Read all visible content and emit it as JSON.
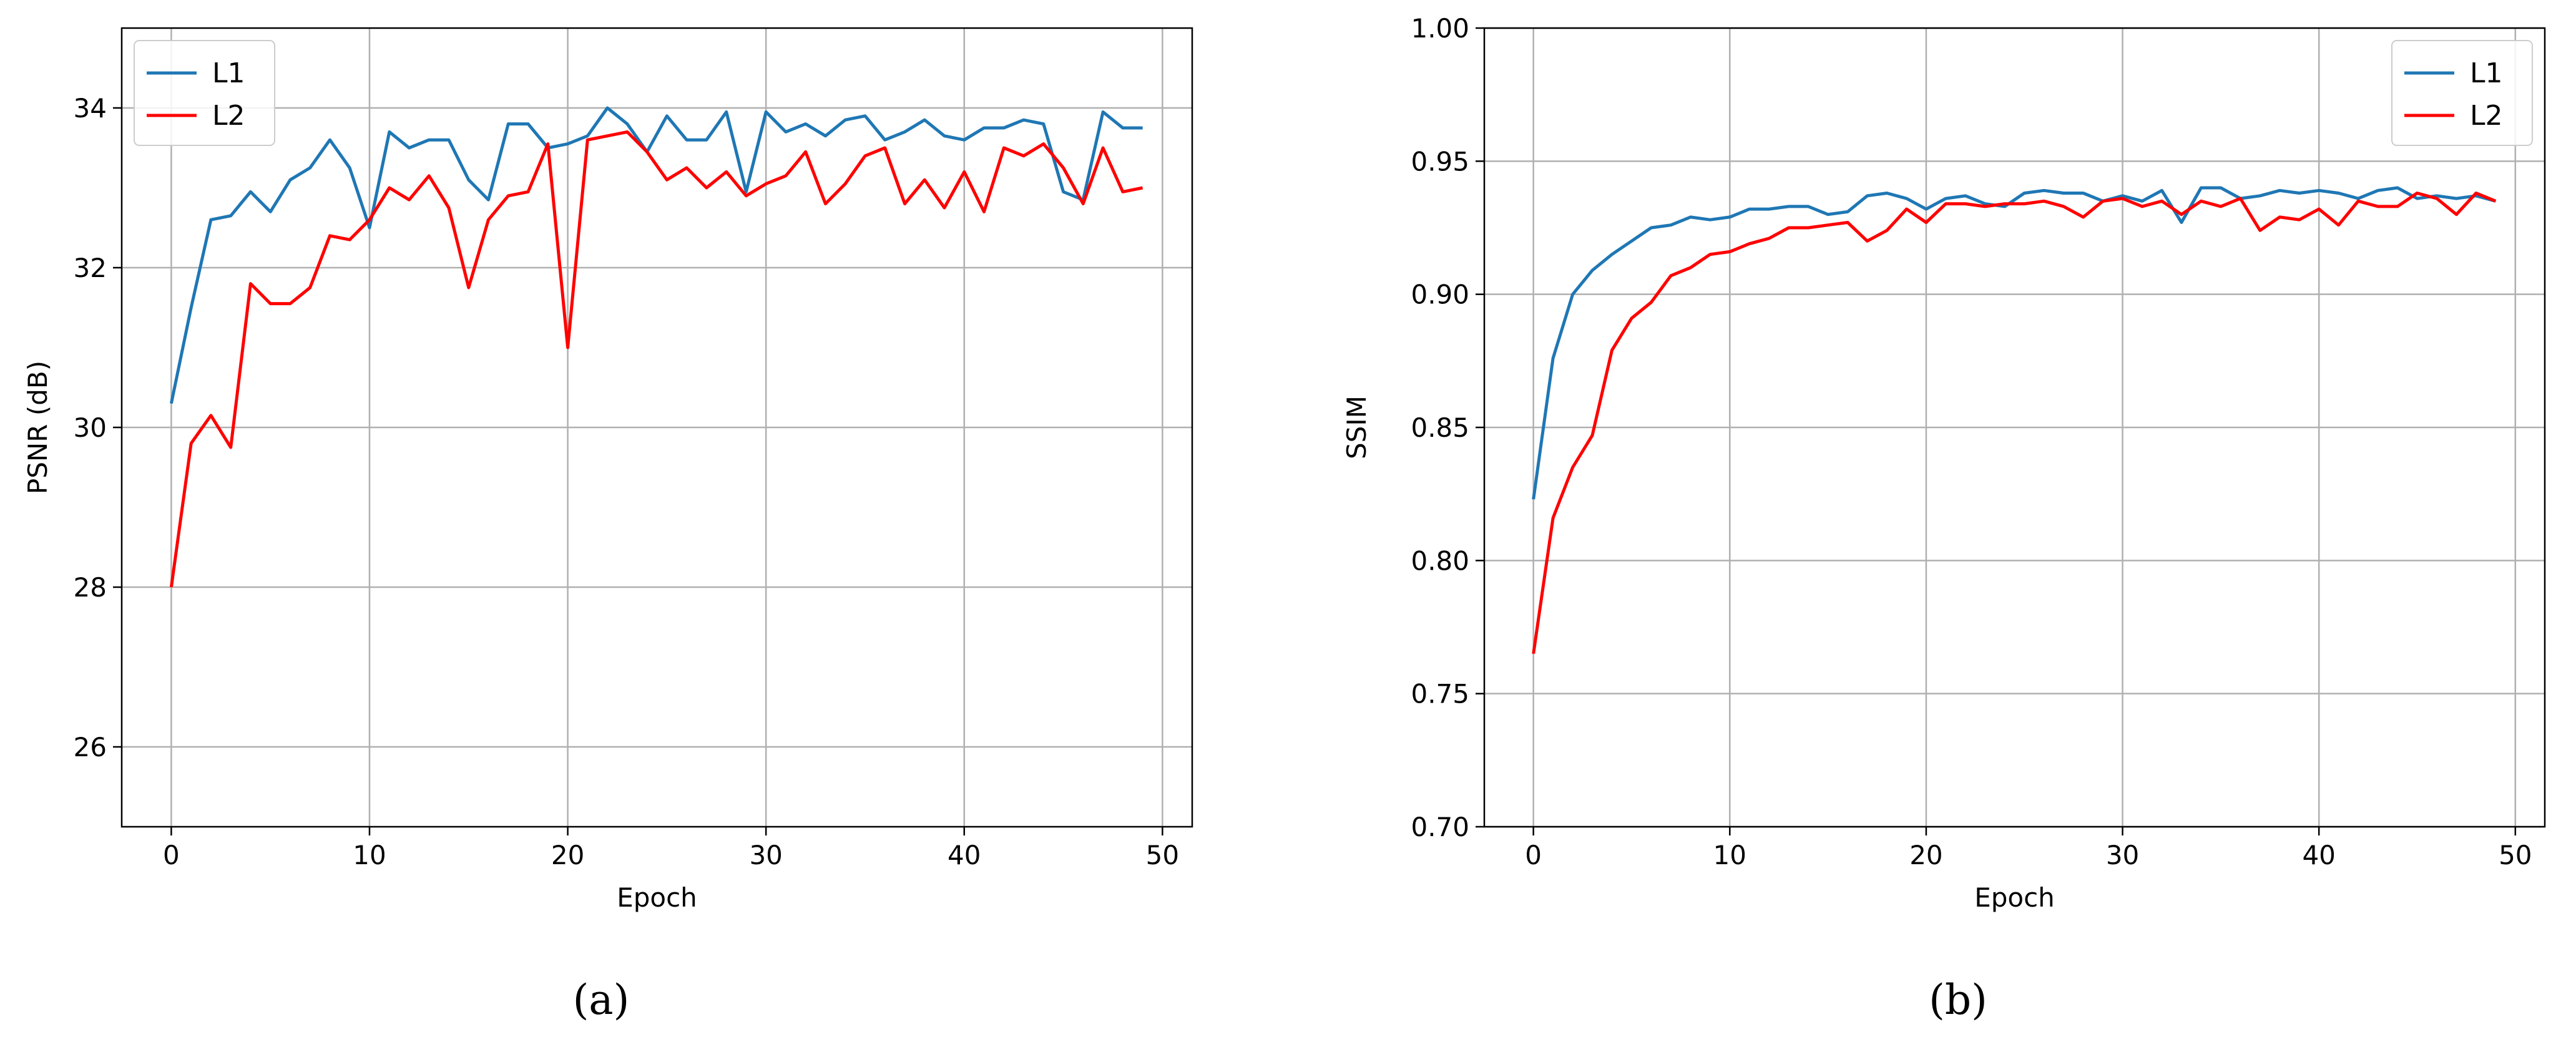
{
  "chart_data": [
    {
      "type": "line",
      "panel": "(a)",
      "xlabel": "Epoch",
      "ylabel": "PSNR (dB)",
      "xlim": [
        -2.5,
        51.5
      ],
      "ylim": [
        25,
        35
      ],
      "xticks": [
        0,
        10,
        20,
        30,
        40,
        50
      ],
      "yticks": [
        26,
        28,
        30,
        32,
        34
      ],
      "grid": true,
      "legend": "top-left",
      "x": [
        0,
        1,
        2,
        3,
        4,
        5,
        6,
        7,
        8,
        9,
        10,
        11,
        12,
        13,
        14,
        15,
        16,
        17,
        18,
        19,
        20,
        21,
        22,
        23,
        24,
        25,
        26,
        27,
        28,
        29,
        30,
        31,
        32,
        33,
        34,
        35,
        36,
        37,
        38,
        39,
        40,
        41,
        42,
        43,
        44,
        45,
        46,
        47,
        48,
        49
      ],
      "series": [
        {
          "name": "L1",
          "color": "#1f77b4",
          "values": [
            30.3,
            31.5,
            32.6,
            32.65,
            32.95,
            32.7,
            33.1,
            33.25,
            33.6,
            33.25,
            32.5,
            33.7,
            33.5,
            33.6,
            33.6,
            33.1,
            32.85,
            33.8,
            33.8,
            33.5,
            33.55,
            33.65,
            34.0,
            33.8,
            33.45,
            33.9,
            33.6,
            33.6,
            33.95,
            32.95,
            33.95,
            33.7,
            33.8,
            33.65,
            33.85,
            33.9,
            33.6,
            33.7,
            33.85,
            33.65,
            33.6,
            33.75,
            33.75,
            33.85,
            33.8,
            32.95,
            32.85,
            33.95,
            33.75,
            33.75
          ]
        },
        {
          "name": "L2",
          "color": "#ff0000",
          "values": [
            28.0,
            29.8,
            30.15,
            29.75,
            31.8,
            31.55,
            31.55,
            31.75,
            32.4,
            32.35,
            32.6,
            33.0,
            32.85,
            33.15,
            32.75,
            31.75,
            32.6,
            32.9,
            32.95,
            33.55,
            31.0,
            33.6,
            33.65,
            33.7,
            33.45,
            33.1,
            33.25,
            33.0,
            33.2,
            32.9,
            33.05,
            33.15,
            33.45,
            32.8,
            33.05,
            33.4,
            33.5,
            32.8,
            33.1,
            32.75,
            33.2,
            32.7,
            33.5,
            33.4,
            33.55,
            33.25,
            32.8,
            33.5,
            32.95,
            33.0
          ]
        }
      ]
    },
    {
      "type": "line",
      "panel": "(b)",
      "xlabel": "Epoch",
      "ylabel": "SSIM",
      "xlim": [
        -2.5,
        51.5
      ],
      "ylim": [
        0.7,
        1.0
      ],
      "xticks": [
        0,
        10,
        20,
        30,
        40,
        50
      ],
      "yticks": [
        0.7,
        0.75,
        0.8,
        0.85,
        0.9,
        0.95,
        1.0
      ],
      "grid": true,
      "legend": "top-right",
      "x": [
        0,
        1,
        2,
        3,
        4,
        5,
        6,
        7,
        8,
        9,
        10,
        11,
        12,
        13,
        14,
        15,
        16,
        17,
        18,
        19,
        20,
        21,
        22,
        23,
        24,
        25,
        26,
        27,
        28,
        29,
        30,
        31,
        32,
        33,
        34,
        35,
        36,
        37,
        38,
        39,
        40,
        41,
        42,
        43,
        44,
        45,
        46,
        47,
        48,
        49
      ],
      "series": [
        {
          "name": "L1",
          "color": "#1f77b4",
          "values": [
            0.823,
            0.876,
            0.9,
            0.909,
            0.915,
            0.92,
            0.925,
            0.926,
            0.929,
            0.928,
            0.929,
            0.932,
            0.932,
            0.933,
            0.933,
            0.93,
            0.931,
            0.937,
            0.938,
            0.936,
            0.932,
            0.936,
            0.937,
            0.934,
            0.933,
            0.938,
            0.939,
            0.938,
            0.938,
            0.935,
            0.937,
            0.935,
            0.939,
            0.927,
            0.94,
            0.94,
            0.936,
            0.937,
            0.939,
            0.938,
            0.939,
            0.938,
            0.936,
            0.939,
            0.94,
            0.936,
            0.937,
            0.936,
            0.937,
            0.935
          ]
        },
        {
          "name": "L2",
          "color": "#ff0000",
          "values": [
            0.765,
            0.816,
            0.835,
            0.847,
            0.879,
            0.891,
            0.897,
            0.907,
            0.91,
            0.915,
            0.916,
            0.919,
            0.921,
            0.925,
            0.925,
            0.926,
            0.927,
            0.92,
            0.924,
            0.932,
            0.927,
            0.934,
            0.934,
            0.933,
            0.934,
            0.934,
            0.935,
            0.933,
            0.929,
            0.935,
            0.936,
            0.933,
            0.935,
            0.93,
            0.935,
            0.933,
            0.936,
            0.924,
            0.929,
            0.928,
            0.932,
            0.926,
            0.935,
            0.933,
            0.933,
            0.938,
            0.936,
            0.93,
            0.938,
            0.935
          ]
        }
      ]
    }
  ],
  "captions": [
    "(a)",
    "(b)"
  ]
}
